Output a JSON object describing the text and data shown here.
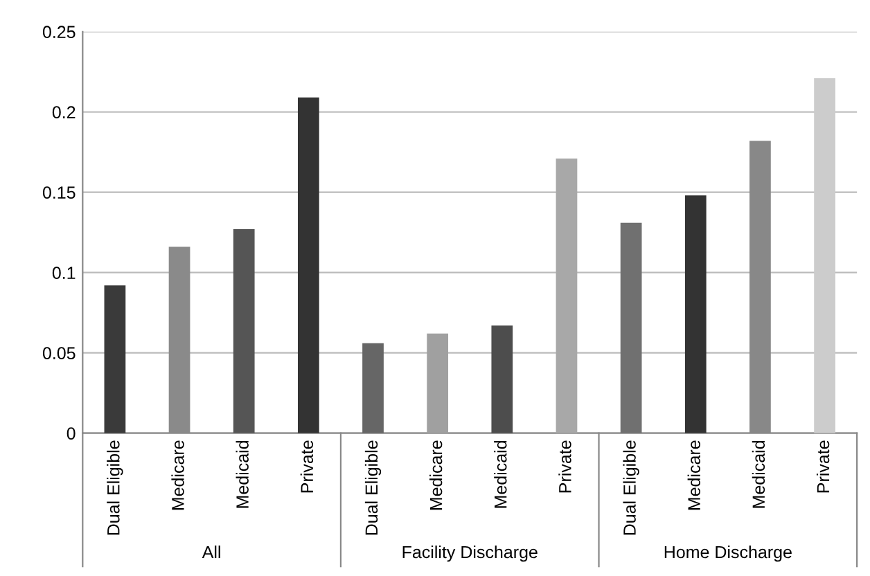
{
  "chart_data": {
    "type": "bar",
    "categories": [
      "Dual Eligible",
      "Medicare",
      "Medicaid",
      "Private",
      "Dual Eligible",
      "Medicare",
      "Medicaid",
      "Private",
      "Dual Eligible",
      "Medicare",
      "Medicaid",
      "Private"
    ],
    "values": [
      0.092,
      0.116,
      0.127,
      0.209,
      0.056,
      0.062,
      0.067,
      0.171,
      0.131,
      0.148,
      0.182,
      0.221
    ],
    "colors": [
      "#3a3a3a",
      "#8a8a8a",
      "#555555",
      "#333333",
      "#666666",
      "#a0a0a0",
      "#4d4d4d",
      "#a8a8a8",
      "#707070",
      "#333333",
      "#888888",
      "#cccccc"
    ],
    "annotations": [
      "All",
      "Facility Discharge",
      "Home Discharge"
    ],
    "ylim": [
      0,
      0.25
    ],
    "yticks": [
      {
        "value": 0,
        "label": "0"
      },
      {
        "value": 0.05,
        "label": "0.05"
      },
      {
        "value": 0.1,
        "label": "0.1"
      },
      {
        "value": 0.15,
        "label": "0.15"
      },
      {
        "value": 0.2,
        "label": "0.2"
      },
      {
        "value": 0.25,
        "label": "0.25"
      }
    ],
    "grid": "y",
    "legend": false
  }
}
